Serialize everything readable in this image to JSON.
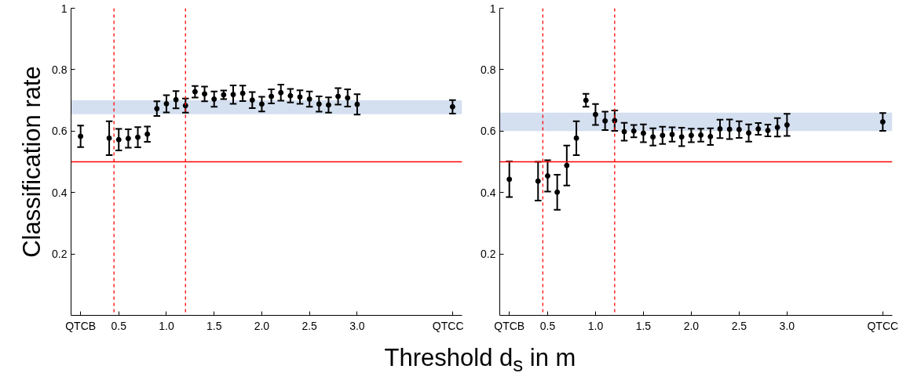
{
  "chart_data": [
    {
      "type": "scatter",
      "ylabel": "Classification rate",
      "xlabel": "Threshold d$_{s}$ in m",
      "marker": "circle",
      "x": [
        0.1,
        0.4,
        0.5,
        0.6,
        0.7,
        0.8,
        0.9,
        1.0,
        1.1,
        1.2,
        1.3,
        1.4,
        1.5,
        1.6,
        1.7,
        1.8,
        1.9,
        2.0,
        2.1,
        2.2,
        2.3,
        2.4,
        2.5,
        2.6,
        2.7,
        2.8,
        2.9,
        3.0,
        4.0
      ],
      "series": [
        {
          "color": "#000000",
          "values": [
            0.583,
            0.577,
            0.572,
            0.576,
            0.58,
            0.59,
            0.673,
            0.689,
            0.702,
            0.683,
            0.728,
            0.721,
            0.704,
            0.718,
            0.719,
            0.723,
            0.701,
            0.688,
            0.713,
            0.725,
            0.715,
            0.711,
            0.704,
            0.688,
            0.685,
            0.713,
            0.708,
            0.687,
            0.679
          ],
          "errors": [
            0.035,
            0.055,
            0.035,
            0.03,
            0.033,
            0.025,
            0.024,
            0.028,
            0.028,
            0.023,
            0.019,
            0.024,
            0.025,
            0.014,
            0.03,
            0.025,
            0.026,
            0.024,
            0.023,
            0.026,
            0.022,
            0.022,
            0.025,
            0.025,
            0.025,
            0.027,
            0.028,
            0.033,
            0.022
          ]
        }
      ],
      "xlim": [
        0,
        4.1
      ],
      "ylim": [
        0,
        1
      ],
      "xticks": [
        {
          "value": 0.1,
          "label": "QTCB"
        },
        {
          "value": 0.5,
          "label": "0.5"
        },
        {
          "value": 1.0,
          "label": "1.0"
        },
        {
          "value": 1.5,
          "label": "1.5"
        },
        {
          "value": 2.0,
          "label": "2.0"
        },
        {
          "value": 2.5,
          "label": "2.5"
        },
        {
          "value": 3.0,
          "label": "3.0"
        },
        {
          "value": 4.0,
          "label": "QTCC"
        }
      ],
      "yticks": [
        0.2,
        0.4,
        0.6,
        0.8,
        1
      ],
      "ref_lines": [
        {
          "axis": "y",
          "value": 0.5,
          "color": "#ff0000",
          "line_style": "solid"
        },
        {
          "axis": "x",
          "value": 0.45,
          "color": "#ff0000",
          "line_style": "dashed"
        },
        {
          "axis": "x",
          "value": 1.2,
          "color": "#ff0000",
          "line_style": "dashed"
        }
      ],
      "bands": [
        {
          "axis": "y",
          "from": 0.655,
          "to": 0.7,
          "color": "#d4dff0"
        }
      ]
    },
    {
      "type": "scatter",
      "marker": "circle",
      "x": [
        0.1,
        0.4,
        0.5,
        0.6,
        0.7,
        0.8,
        0.9,
        1.0,
        1.1,
        1.2,
        1.3,
        1.4,
        1.5,
        1.6,
        1.7,
        1.8,
        1.9,
        2.0,
        2.1,
        2.2,
        2.3,
        2.4,
        2.5,
        2.6,
        2.7,
        2.8,
        2.9,
        3.0,
        4.0
      ],
      "series": [
        {
          "color": "#000000",
          "values": [
            0.443,
            0.437,
            0.454,
            0.401,
            0.488,
            0.577,
            0.7,
            0.654,
            0.633,
            0.634,
            0.598,
            0.6,
            0.593,
            0.581,
            0.586,
            0.589,
            0.581,
            0.586,
            0.587,
            0.582,
            0.607,
            0.606,
            0.605,
            0.594,
            0.607,
            0.602,
            0.612,
            0.62,
            0.63
          ],
          "errors": [
            0.058,
            0.063,
            0.051,
            0.057,
            0.065,
            0.055,
            0.021,
            0.034,
            0.03,
            0.033,
            0.029,
            0.02,
            0.029,
            0.028,
            0.028,
            0.023,
            0.03,
            0.022,
            0.021,
            0.027,
            0.03,
            0.032,
            0.027,
            0.028,
            0.019,
            0.019,
            0.03,
            0.036,
            0.029
          ]
        }
      ],
      "xlim": [
        0,
        4.1
      ],
      "ylim": [
        0,
        1
      ],
      "xticks": [
        {
          "value": 0.1,
          "label": "QTCB"
        },
        {
          "value": 0.5,
          "label": "0.5"
        },
        {
          "value": 1.0,
          "label": "1.0"
        },
        {
          "value": 1.5,
          "label": "1.5"
        },
        {
          "value": 2.0,
          "label": "2.0"
        },
        {
          "value": 2.5,
          "label": "2.5"
        },
        {
          "value": 3.0,
          "label": "3.0"
        },
        {
          "value": 4.0,
          "label": "QTCC"
        }
      ],
      "yticks": [
        0.2,
        0.4,
        0.6,
        0.8,
        1
      ],
      "ref_lines": [
        {
          "axis": "y",
          "value": 0.5,
          "color": "#ff0000",
          "line_style": "solid"
        },
        {
          "axis": "x",
          "value": 0.45,
          "color": "#ff0000",
          "line_style": "dashed"
        },
        {
          "axis": "x",
          "value": 1.2,
          "color": "#ff0000",
          "line_style": "dashed"
        }
      ],
      "bands": [
        {
          "axis": "y",
          "from": 0.6,
          "to": 0.66,
          "color": "#d4dff0"
        }
      ]
    }
  ]
}
